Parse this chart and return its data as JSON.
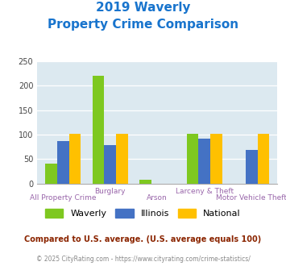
{
  "title_line1": "2019 Waverly",
  "title_line2": "Property Crime Comparison",
  "title_color": "#1874CD",
  "groups": [
    "All Property Crime",
    "Burglary",
    "Arson",
    "Larceny & Theft",
    "Motor Vehicle Theft"
  ],
  "group_labels_top": [
    "",
    "Burglary",
    "",
    "Larceny & Theft",
    ""
  ],
  "group_labels_bot": [
    "All Property Crime",
    "",
    "Arson",
    "",
    "Motor Vehicle Theft"
  ],
  "waverly": [
    40,
    220,
    8,
    101,
    0
  ],
  "illinois": [
    86,
    79,
    0,
    92,
    68
  ],
  "national": [
    101,
    101,
    0,
    101,
    101
  ],
  "waverly_color": "#7EC820",
  "illinois_color": "#4472C4",
  "national_color": "#FFC000",
  "bar_width": 0.25,
  "ylim": [
    0,
    250
  ],
  "yticks": [
    0,
    50,
    100,
    150,
    200,
    250
  ],
  "bg_color": "#dce9f0",
  "fig_bg": "#ffffff",
  "legend_labels": [
    "Waverly",
    "Illinois",
    "National"
  ],
  "footnote1": "Compared to U.S. average. (U.S. average equals 100)",
  "footnote2": "© 2025 CityRating.com - https://www.cityrating.com/crime-statistics/",
  "footnote1_color": "#8B2500",
  "footnote2_color": "#888888",
  "label_color": "#9966aa"
}
